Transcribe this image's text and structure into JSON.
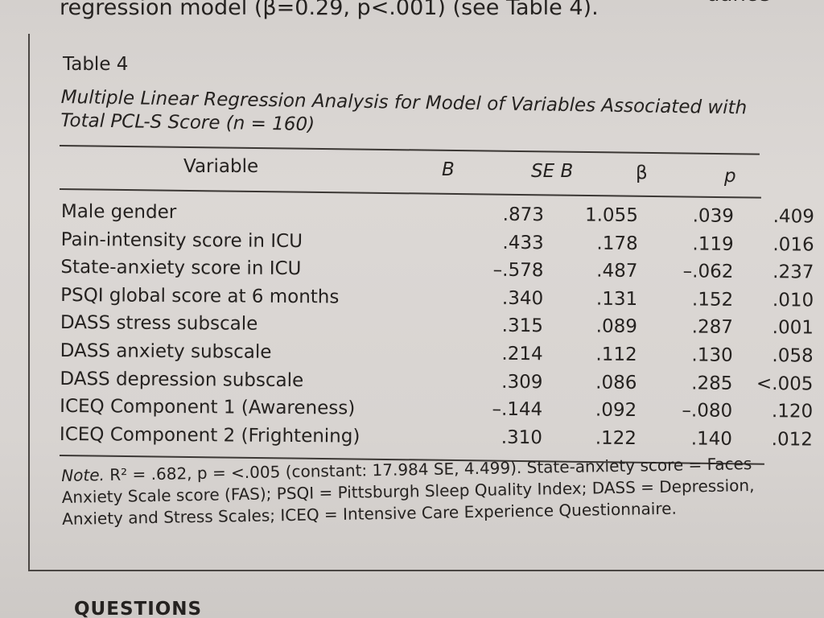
{
  "lead_text": "regression model (β=0.29, p<.001) (see Table 4).",
  "corner_word": "uance",
  "table": {
    "label": "Table 4",
    "caption_line1": "Multiple Linear Regression Analysis for Model of Variables Associated with",
    "caption_line2": "Total PCL-S Score (n = 160)",
    "headers": {
      "variable": "Variable",
      "b": "B",
      "se_b": "SE B",
      "beta": "β",
      "p": "p"
    },
    "rows": [
      {
        "variable": "Male gender",
        "b": ".873",
        "se_b": "1.055",
        "beta": ".039",
        "p": ".409"
      },
      {
        "variable": "Pain-intensity score in ICU",
        "b": ".433",
        "se_b": ".178",
        "beta": ".119",
        "p": ".016"
      },
      {
        "variable": "State-anxiety score in ICU",
        "b": "–.578",
        "se_b": ".487",
        "beta": "–.062",
        "p": ".237"
      },
      {
        "variable": "PSQI global score at 6 months",
        "b": ".340",
        "se_b": ".131",
        "beta": ".152",
        "p": ".010"
      },
      {
        "variable": "DASS stress subscale",
        "b": ".315",
        "se_b": ".089",
        "beta": ".287",
        "p": ".001"
      },
      {
        "variable": "DASS anxiety subscale",
        "b": ".214",
        "se_b": ".112",
        "beta": ".130",
        "p": ".058"
      },
      {
        "variable": "DASS depression subscale",
        "b": ".309",
        "se_b": ".086",
        "beta": ".285",
        "p": "<.005"
      },
      {
        "variable": "ICEQ Component 1 (Awareness)",
        "b": "–.144",
        "se_b": ".092",
        "beta": "–.080",
        "p": ".120"
      },
      {
        "variable": "ICEQ Component 2 (Frightening)",
        "b": ".310",
        "se_b": ".122",
        "beta": ".140",
        "p": ".012"
      }
    ],
    "note_lead": "Note.",
    "note_line1": " R² = .682, p = <.005 (constant: 17.984 SE, 4.499). State-anxiety score = Faces",
    "note_line2": "Anxiety Scale score (FAS); PSQI = Pittsburgh Sleep Quality Index; DASS = Depression,",
    "note_line3": "Anxiety and Stress Scales; ICEQ = Intensive Care Experience Questionnaire."
  },
  "footer_heading": "QUESTIONS"
}
